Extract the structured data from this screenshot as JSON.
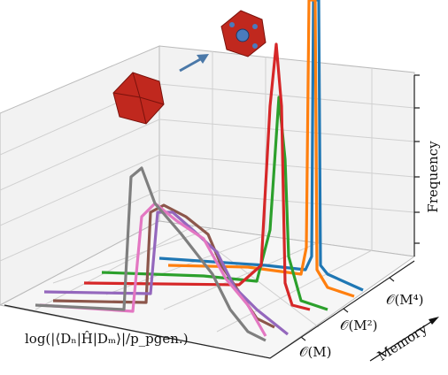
{
  "chart_data": {
    "type": "waterfall3d",
    "xlabel": "log(|⟨Dₙ|Ĥ|Dₘ⟩|/p_pgen.)",
    "ylabel": "Memory",
    "zlabel": "Frequency",
    "categories": [
      "𝒪(M)",
      "𝒪(M²)",
      "𝒪(M⁴)"
    ]
  }
}
